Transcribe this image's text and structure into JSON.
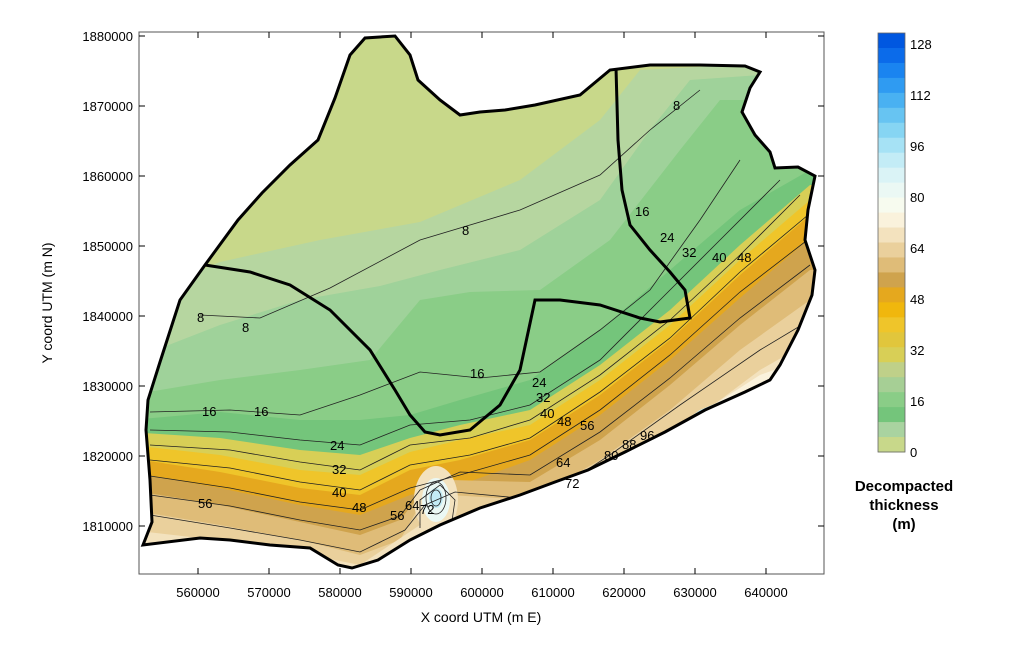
{
  "map": {
    "x_axis_title": "X coord UTM (m E)",
    "y_axis_title": "Y coord UTM (m N)",
    "x_ticks": [
      "560000",
      "570000",
      "580000",
      "590000",
      "600000",
      "610000",
      "620000",
      "630000",
      "640000"
    ],
    "y_ticks": [
      "1880000",
      "1870000",
      "1860000",
      "1850000",
      "1840000",
      "1830000",
      "1820000",
      "1810000"
    ],
    "contour_labels": [
      "8",
      "8",
      "8",
      "8",
      "16",
      "16",
      "16",
      "16",
      "24",
      "24",
      "24",
      "32",
      "32",
      "32",
      "40",
      "40",
      "40",
      "48",
      "48",
      "48",
      "56",
      "56",
      "56",
      "64",
      "64",
      "72",
      "72",
      "80",
      "88",
      "96"
    ]
  },
  "colorbar": {
    "title_line1": "Decompacted",
    "title_line2": "thickness",
    "title_line3": "(m)",
    "labels": [
      "128",
      "112",
      "96",
      "80",
      "64",
      "48",
      "32",
      "16",
      "0"
    ],
    "colors": [
      "#0057e0",
      "#0b6bea",
      "#1a84f0",
      "#2f9bf2",
      "#49b1f2",
      "#67c4f2",
      "#86d5f3",
      "#a6e2f5",
      "#c3ecf6",
      "#daf3f6",
      "#ebf8f4",
      "#f7fbef",
      "#faf2dc",
      "#f3e2be",
      "#ead09c",
      "#dfbc78",
      "#cfa34d",
      "#e5a81e",
      "#f0b70d",
      "#efc52a",
      "#e1c63c",
      "#d8cf56",
      "#bfd089",
      "#a6cf95",
      "#8acd87",
      "#74c57b",
      "#a9d3a0",
      "#c8d88a"
    ]
  }
}
